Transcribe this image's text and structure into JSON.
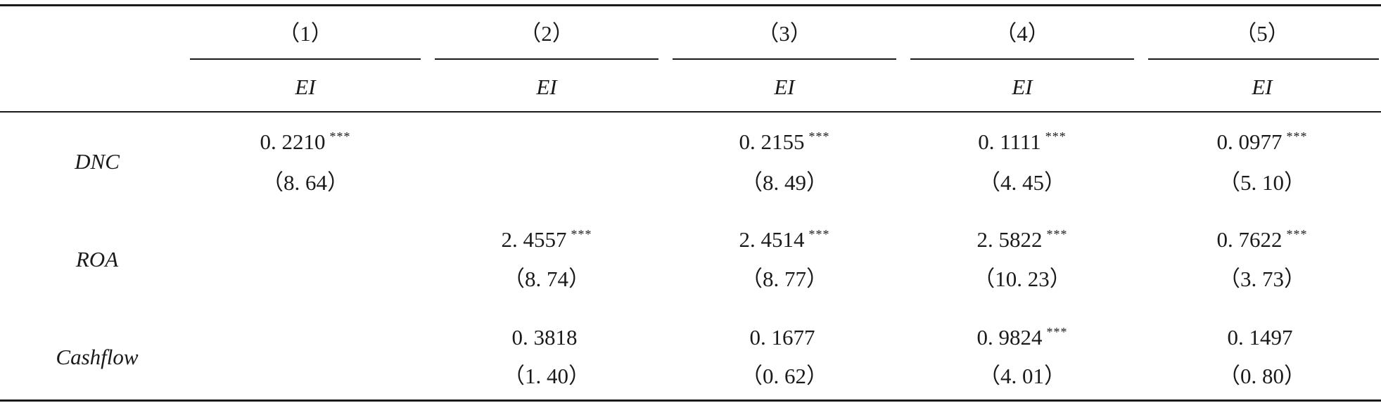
{
  "table": {
    "column_numbers": [
      "（1）",
      "（2）",
      "（3）",
      "（4）",
      "（5）"
    ],
    "dependent_variable": [
      "EI",
      "EI",
      "EI",
      "EI",
      "EI"
    ],
    "rows": [
      {
        "variable": "DNC",
        "cells": [
          {
            "coef": "0. 2210",
            "stars": "***",
            "t": "（8. 64）"
          },
          {
            "coef": "",
            "stars": "",
            "t": ""
          },
          {
            "coef": "0. 2155",
            "stars": "***",
            "t": "（8. 49）"
          },
          {
            "coef": "0. 1111",
            "stars": "***",
            "t": "（4. 45）"
          },
          {
            "coef": "0. 0977",
            "stars": "***",
            "t": "（5. 10）"
          }
        ]
      },
      {
        "variable": "ROA",
        "cells": [
          {
            "coef": "",
            "stars": "",
            "t": ""
          },
          {
            "coef": "2. 4557",
            "stars": "***",
            "t": "（8. 74）"
          },
          {
            "coef": "2. 4514",
            "stars": "***",
            "t": "（8. 77）"
          },
          {
            "coef": "2. 5822",
            "stars": "***",
            "t": "（10. 23）"
          },
          {
            "coef": "0. 7622",
            "stars": "***",
            "t": "（3. 73）"
          }
        ]
      },
      {
        "variable": "Cashflow",
        "cells": [
          {
            "coef": "",
            "stars": "",
            "t": ""
          },
          {
            "coef": "0. 3818",
            "stars": "",
            "t": "（1. 40）"
          },
          {
            "coef": "0. 1677",
            "stars": "",
            "t": "（0. 62）"
          },
          {
            "coef": "0. 9824",
            "stars": "***",
            "t": "（4. 01）"
          },
          {
            "coef": "0. 1497",
            "stars": "",
            "t": "（0. 80）"
          }
        ]
      }
    ]
  }
}
